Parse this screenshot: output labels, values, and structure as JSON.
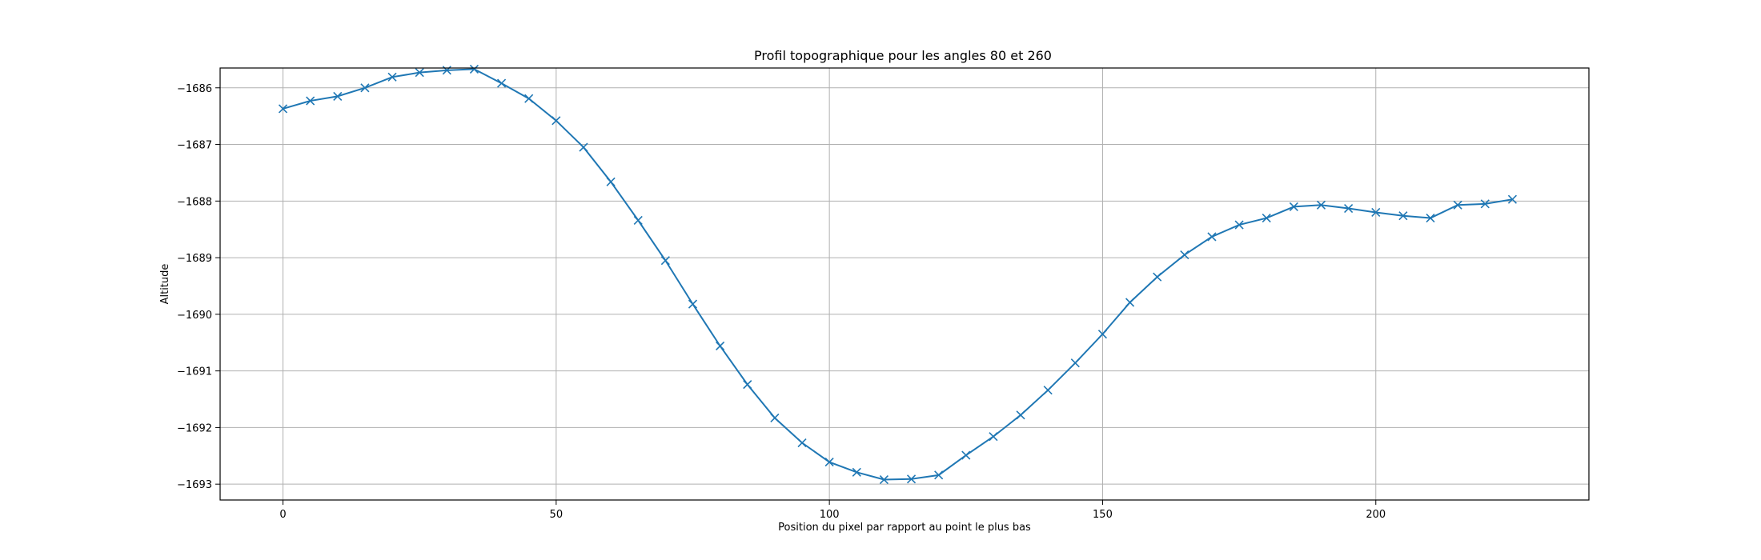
{
  "chart_data": {
    "type": "line",
    "title": "Profil topographique pour les angles 80 et 260",
    "xlabel": "Position du pixel par rapport au point le plus bas",
    "ylabel": "Altitude",
    "xlim": [
      -11.5,
      239
    ],
    "ylim": [
      -1693.28,
      -1685.65
    ],
    "xticks": [
      0,
      50,
      100,
      150,
      200
    ],
    "xtick_labels": [
      "0",
      "50",
      "100",
      "150",
      "200"
    ],
    "yticks": [
      -1686,
      -1687,
      -1688,
      -1689,
      -1690,
      -1691,
      -1692,
      -1693
    ],
    "ytick_labels": [
      "−1686",
      "−1687",
      "−1688",
      "−1689",
      "−1690",
      "−1691",
      "−1692",
      "−1693"
    ],
    "grid": true,
    "marker": "x",
    "color": "#1f77b4",
    "series": [
      {
        "x": [
          0,
          5,
          10,
          15,
          20,
          25,
          30,
          35,
          40,
          45,
          50,
          55,
          60,
          65,
          70,
          75,
          80,
          85,
          90,
          95,
          100,
          105,
          110,
          115,
          120,
          125,
          130,
          135,
          140,
          145,
          150,
          155,
          160,
          165,
          170,
          175,
          180,
          185,
          190,
          195,
          200,
          205,
          210,
          215,
          220,
          225
        ],
        "y": [
          -1686.37,
          -1686.23,
          -1686.15,
          -1686.0,
          -1685.81,
          -1685.73,
          -1685.69,
          -1685.67,
          -1685.92,
          -1686.19,
          -1686.58,
          -1687.05,
          -1687.66,
          -1688.34,
          -1689.05,
          -1689.82,
          -1690.56,
          -1691.24,
          -1691.83,
          -1692.27,
          -1692.61,
          -1692.79,
          -1692.92,
          -1692.91,
          -1692.84,
          -1692.49,
          -1692.16,
          -1691.78,
          -1691.34,
          -1690.86,
          -1690.35,
          -1689.79,
          -1689.34,
          -1688.95,
          -1688.63,
          -1688.42,
          -1688.3,
          -1688.1,
          -1688.07,
          -1688.13,
          -1688.2,
          -1688.26,
          -1688.3,
          -1688.07,
          -1688.05,
          -1687.97
        ]
      }
    ]
  }
}
